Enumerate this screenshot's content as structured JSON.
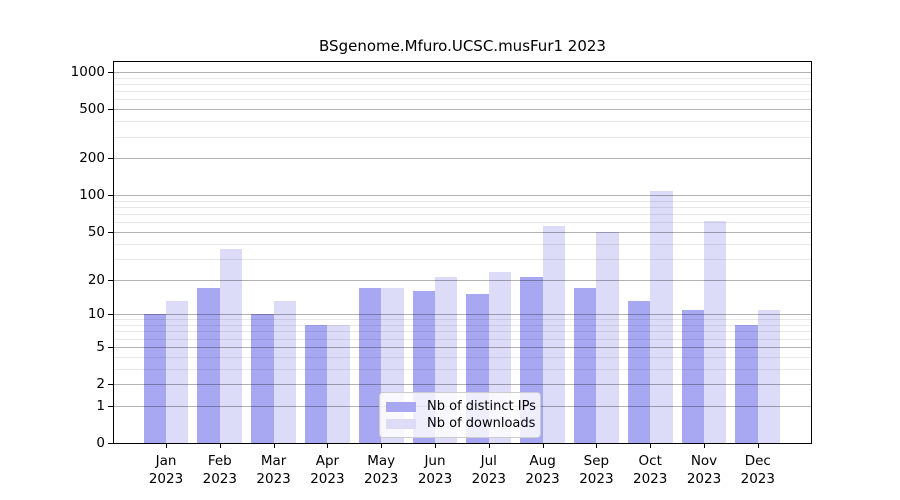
{
  "chart_data": {
    "type": "bar",
    "title": "BSgenome.Mfuro.UCSC.musFur1 2023",
    "categories": [
      "Jan",
      "Feb",
      "Mar",
      "Apr",
      "May",
      "Jun",
      "Jul",
      "Aug",
      "Sep",
      "Oct",
      "Nov",
      "Dec"
    ],
    "x_year": "2023",
    "series": [
      {
        "name": "Nb of distinct IPs",
        "color": "#a8a8f2",
        "values": [
          10,
          17,
          10,
          8,
          17,
          16,
          15,
          21,
          17,
          13,
          11,
          8
        ]
      },
      {
        "name": "Nb of downloads",
        "color": "#dcdcf8",
        "values": [
          13,
          36,
          13,
          8,
          17,
          21,
          23,
          56,
          50,
          108,
          61,
          11
        ]
      }
    ],
    "y_scale": "log10(value+1)",
    "y_major_ticks": [
      0,
      1,
      2,
      5,
      10,
      20,
      50,
      100,
      200,
      500,
      1000
    ],
    "y_minor_gridlines": [
      3,
      4,
      6,
      7,
      8,
      9,
      30,
      40,
      60,
      70,
      80,
      90,
      300,
      400,
      600,
      700,
      800,
      900
    ],
    "ylim": [
      0,
      1250
    ],
    "grid": "horizontal",
    "legend_position": "bottom-center"
  }
}
